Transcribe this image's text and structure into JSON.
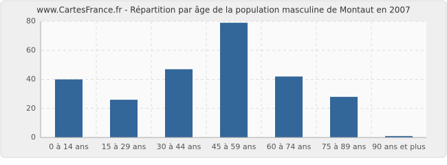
{
  "chart_data": {
    "type": "bar",
    "title": "www.CartesFrance.fr - Répartition par âge de la population masculine de Montaut en 2007",
    "categories": [
      "0 à 14 ans",
      "15 à 29 ans",
      "30 à 44 ans",
      "45 à 59 ans",
      "60 à 74 ans",
      "75 à 89 ans",
      "90 ans et plus"
    ],
    "values": [
      40,
      26,
      47,
      79,
      42,
      28,
      1
    ],
    "color": "#336699",
    "ylim": [
      0,
      80
    ],
    "yticks": [
      0,
      20,
      40,
      60,
      80
    ],
    "grid": true
  }
}
